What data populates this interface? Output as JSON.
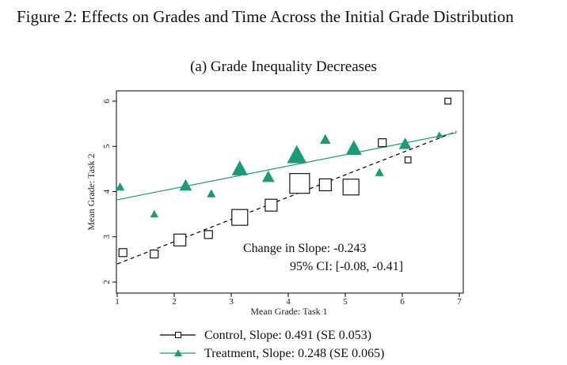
{
  "figure": {
    "title": "Figure 2: Effects on Grades and Time Across the Initial Grade Distribution",
    "subtitle": "(a) Grade Inequality Decreases"
  },
  "chart_data": {
    "type": "scatter",
    "xlabel": "Mean Grade: Task 1",
    "ylabel": "Mean Grade: Task 2",
    "xlim": [
      1,
      7
    ],
    "ylim": [
      2,
      6
    ],
    "x_ticks": [
      1,
      2,
      3,
      4,
      5,
      6,
      7
    ],
    "y_ticks": [
      2,
      3,
      4,
      5,
      6
    ],
    "grid": false,
    "colors": {
      "control": "#000000",
      "treatment": "#1a9b7a"
    },
    "series": [
      {
        "key": "control",
        "marker": "hollow-square",
        "line": "dashed",
        "points": [
          {
            "x": 1.1,
            "y": 2.65,
            "w": 1
          },
          {
            "x": 1.65,
            "y": 2.62,
            "w": 1
          },
          {
            "x": 2.1,
            "y": 2.93,
            "w": 2
          },
          {
            "x": 2.6,
            "y": 3.05,
            "w": 1
          },
          {
            "x": 3.15,
            "y": 3.43,
            "w": 3
          },
          {
            "x": 3.7,
            "y": 3.7,
            "w": 2
          },
          {
            "x": 4.2,
            "y": 4.18,
            "w": 4
          },
          {
            "x": 4.65,
            "y": 4.15,
            "w": 2
          },
          {
            "x": 5.1,
            "y": 4.1,
            "w": 3
          },
          {
            "x": 5.65,
            "y": 5.08,
            "w": 1
          },
          {
            "x": 6.1,
            "y": 4.7,
            "w": 0.5
          },
          {
            "x": 6.8,
            "y": 6.0,
            "w": 0.5
          }
        ],
        "fit": {
          "x": [
            1,
            6.95
          ],
          "y": [
            2.4,
            5.33
          ]
        }
      },
      {
        "key": "treatment",
        "marker": "filled-triangle",
        "line": "solid",
        "points": [
          {
            "x": 1.05,
            "y": 4.1,
            "w": 1
          },
          {
            "x": 1.65,
            "y": 3.5,
            "w": 0.8
          },
          {
            "x": 2.2,
            "y": 4.13,
            "w": 2
          },
          {
            "x": 2.65,
            "y": 3.95,
            "w": 1
          },
          {
            "x": 3.15,
            "y": 4.5,
            "w": 3
          },
          {
            "x": 3.65,
            "y": 4.32,
            "w": 2
          },
          {
            "x": 4.15,
            "y": 4.8,
            "w": 4
          },
          {
            "x": 4.65,
            "y": 5.15,
            "w": 1.5
          },
          {
            "x": 5.15,
            "y": 4.95,
            "w": 3
          },
          {
            "x": 5.6,
            "y": 4.42,
            "w": 1
          },
          {
            "x": 6.05,
            "y": 5.05,
            "w": 2
          },
          {
            "x": 6.65,
            "y": 5.25,
            "w": 0.5
          }
        ],
        "fit": {
          "x": [
            1,
            6.95
          ],
          "y": [
            3.82,
            5.3
          ]
        }
      }
    ],
    "annotations": [
      "Change in Slope:  -0.243",
      "95% CI: [-0.08, -0.41]"
    ],
    "legend": {
      "placement": "bottom",
      "entries": [
        "Control, Slope: 0.491 (SE 0.053)",
        "Treatment, Slope: 0.248 (SE 0.065)"
      ]
    }
  }
}
